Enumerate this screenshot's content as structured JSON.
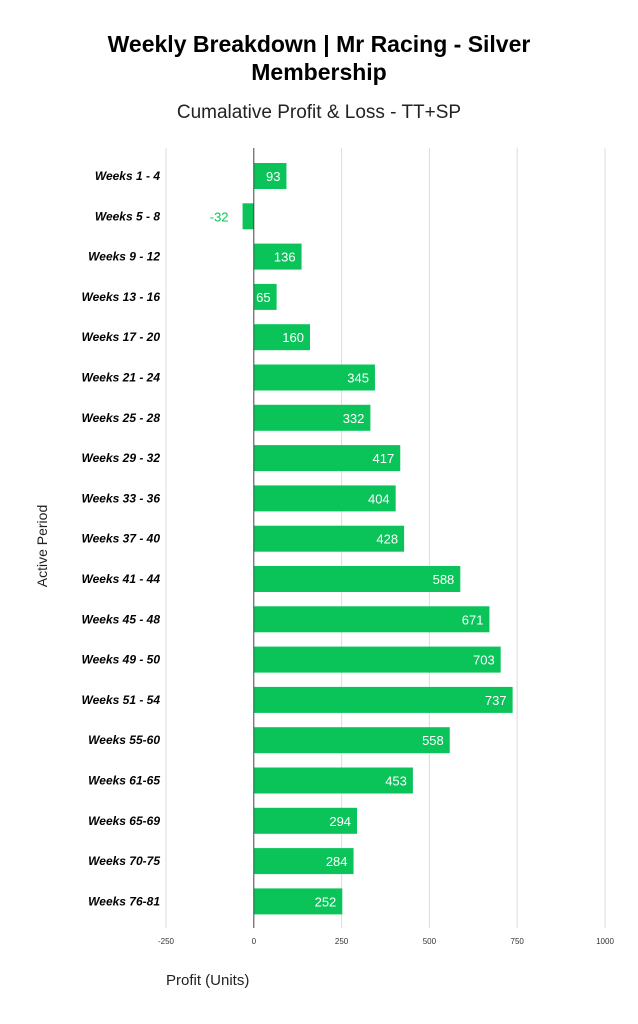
{
  "chart_data": {
    "type": "bar",
    "orientation": "horizontal",
    "title_lines": [
      "Weekly Breakdown | Mr Racing - Silver",
      "Membership"
    ],
    "subtitle": "Cumalative Profit & Loss - TT+SP",
    "xlabel": "Profit (Units)",
    "ylabel": "Active Period",
    "xlim": [
      -250,
      1000
    ],
    "xticks": [
      -250,
      0,
      250,
      500,
      750,
      1000
    ],
    "grid": true,
    "bar_color": "#0ac45a",
    "label_color_inside": "#ffffff",
    "label_color_outside": "#0ac45a",
    "categories": [
      "Weeks 1 - 4",
      "Weeks 5 - 8",
      "Weeks 9 - 12",
      "Weeks 13 - 16",
      "Weeks 17 - 20",
      "Weeks 21 - 24",
      "Weeks 25 - 28",
      "Weeks 29 - 32",
      "Weeks 33 - 36",
      "Weeks 37 - 40",
      "Weeks 41 - 44",
      "Weeks 45 - 48",
      "Weeks 49 - 50",
      "Weeks 51 - 54",
      "Weeks 55-60",
      "Weeks 61-65",
      "Weeks 65-69",
      "Weeks 70-75",
      "Weeks 76-81"
    ],
    "values": [
      93,
      -32,
      136,
      65,
      160,
      345,
      332,
      417,
      404,
      428,
      588,
      671,
      703,
      737,
      558,
      453,
      294,
      284,
      252
    ]
  }
}
